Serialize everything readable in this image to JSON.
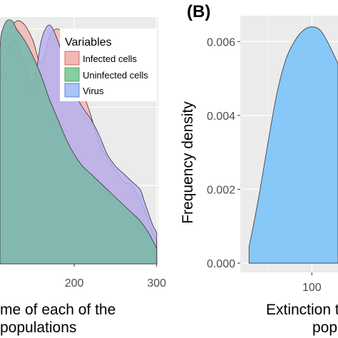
{
  "chart_data": [
    {
      "type": "area",
      "panel": "",
      "xlabel": "me of each of the",
      "xlabel_line2": "populations",
      "ylabel": "",
      "xlim": [
        110,
        302
      ],
      "ylim": [
        0,
        0.0063
      ],
      "x_ticks": [
        200,
        300
      ],
      "grid": true,
      "legend": {
        "title": "Variables",
        "position": "top-right",
        "entries": [
          "Infected cells",
          "Uninfected cells",
          "Virus"
        ]
      },
      "series": [
        {
          "name": "Infected cells",
          "color": "#f4b6b3",
          "x": [
            110,
            115,
            120,
            130,
            140,
            150,
            160,
            170,
            180,
            190,
            200,
            210,
            220,
            230,
            240,
            250,
            260,
            270,
            280,
            285,
            290,
            295,
            300
          ],
          "y": [
            0.0052,
            0.0056,
            0.0059,
            0.0062,
            0.0061,
            0.0057,
            0.0051,
            0.0058,
            0.006,
            0.0057,
            0.0049,
            0.0044,
            0.0038,
            0.0031,
            0.0027,
            0.0024,
            0.0021,
            0.002,
            0.0016,
            0.0014,
            0.0011,
            0.0008,
            0.0006
          ]
        },
        {
          "name": "Uninfected cells",
          "color": "#7fb8ae",
          "x": [
            110,
            112,
            118,
            125,
            130,
            140,
            150,
            160,
            170,
            180,
            190,
            200,
            210,
            220,
            230,
            240,
            250,
            260,
            270,
            280,
            290,
            295,
            300
          ],
          "y": [
            0.0055,
            0.0059,
            0.0062,
            0.0062,
            0.006,
            0.0057,
            0.0053,
            0.0048,
            0.0042,
            0.0037,
            0.0032,
            0.0028,
            0.0025,
            0.0023,
            0.0021,
            0.0019,
            0.0017,
            0.0015,
            0.0013,
            0.0011,
            0.0008,
            0.0006,
            0.0004
          ]
        },
        {
          "name": "Virus",
          "color": "#b6b2f0",
          "x": [
            110,
            115,
            120,
            125,
            130,
            140,
            150,
            160,
            170,
            180,
            190,
            200,
            210,
            220,
            230,
            240,
            250,
            260,
            270,
            280,
            285,
            290,
            295,
            300
          ],
          "y": [
            0.0047,
            0.0051,
            0.0055,
            0.0057,
            0.0056,
            0.0051,
            0.0045,
            0.0057,
            0.0061,
            0.0057,
            0.005,
            0.0044,
            0.004,
            0.0037,
            0.0033,
            0.0028,
            0.0025,
            0.0023,
            0.0021,
            0.0019,
            0.0016,
            0.0013,
            0.001,
            0.0008
          ]
        }
      ]
    },
    {
      "type": "area",
      "panel": "(B)",
      "xlabel": "Extinction t",
      "xlabel_line2": "pop",
      "ylabel": "Frequency density",
      "xlim": [
        18,
        130
      ],
      "ylim": [
        -0.00025,
        0.0067
      ],
      "x_ticks": [
        100
      ],
      "y_ticks": [
        0.0,
        0.002,
        0.004,
        0.006
      ],
      "y_tick_labels": [
        "0.000",
        "0.002",
        "0.004",
        "0.006"
      ],
      "grid": true,
      "series": [
        {
          "name": "",
          "color": "#86c8f8",
          "x": [
            28,
            32,
            40,
            50,
            60,
            70,
            80,
            90,
            100,
            110,
            120,
            130
          ],
          "y": [
            0.00045,
            0.0009,
            0.0019,
            0.0033,
            0.0046,
            0.0055,
            0.006,
            0.0063,
            0.0064,
            0.0063,
            0.0059,
            0.0054
          ]
        }
      ]
    }
  ],
  "colors": {
    "panel_bg": "#ebebeb",
    "grid_major": "#ffffff",
    "axis_text": "#4d4d4d",
    "outline": "#333333"
  }
}
